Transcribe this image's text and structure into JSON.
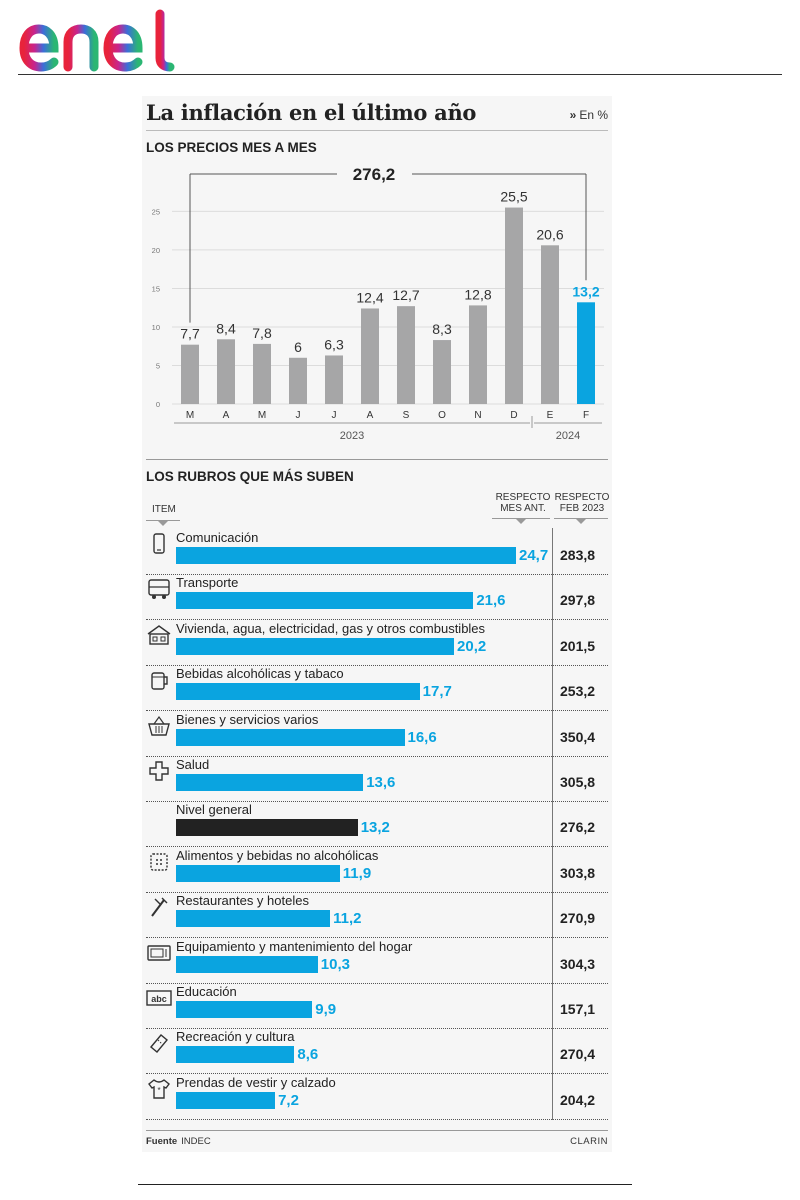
{
  "brand": {
    "name": "enel"
  },
  "infographic": {
    "title": "La inflación en el último año",
    "unit_marker": "»",
    "unit_label": "En %",
    "source_label": "Fuente",
    "source_value": "INDEC",
    "publisher": "CLARIN"
  },
  "chart_data": [
    {
      "type": "bar",
      "title": "LOS PRECIOS MES A MES",
      "categories": [
        "M",
        "A",
        "M",
        "J",
        "J",
        "A",
        "S",
        "O",
        "N",
        "D",
        "E",
        "F"
      ],
      "values": [
        7.7,
        8.4,
        7.8,
        6,
        6.3,
        12.4,
        12.7,
        8.3,
        12.8,
        25.5,
        20.6,
        13.2
      ],
      "value_labels": [
        "7,7",
        "8,4",
        "7,8",
        "6",
        "6,3",
        "12,4",
        "12,7",
        "8,3",
        "12,8",
        "25,5",
        "20,6",
        "13,2"
      ],
      "highlight_index": 11,
      "yticks": [
        0,
        5,
        10,
        15,
        20,
        25
      ],
      "ytick_labels": [
        "0",
        "5",
        "10",
        "15",
        "20",
        "25"
      ],
      "ylim": [
        0,
        27
      ],
      "grid": true,
      "cumulative_label": "276,2",
      "year_groups": [
        {
          "label": "2023",
          "from": 0,
          "to": 9
        },
        {
          "label": "2024",
          "from": 10,
          "to": 11
        }
      ],
      "colors": {
        "bar": "#a6a6a7",
        "highlight": "#0aa4e0",
        "grid": "#dcdcdc"
      }
    },
    {
      "type": "bar",
      "orientation": "horizontal",
      "title": "LOS RUBROS QUE MÁS SUBEN",
      "item_header": "ITEM",
      "column_headers": {
        "mes_ant": [
          "RESPECTO",
          "MES ANT."
        ],
        "feb": [
          "RESPECTO",
          "FEB 2023"
        ]
      },
      "xlim": [
        0,
        24.7
      ],
      "items": [
        {
          "label": "Comunicación",
          "icon": "phone-icon",
          "value": 24.7,
          "value_label": "24,7",
          "feb2023": "283,8"
        },
        {
          "label": "Transporte",
          "icon": "bus-icon",
          "value": 21.6,
          "value_label": "21,6",
          "feb2023": "297,8"
        },
        {
          "label": "Vivienda, agua, electricidad, gas y otros combustibles",
          "icon": "house-icon",
          "value": 20.2,
          "value_label": "20,2",
          "feb2023": "201,5"
        },
        {
          "label": "Bebidas alcohólicas y tabaco",
          "icon": "beer-mug-icon",
          "value": 17.7,
          "value_label": "17,7",
          "feb2023": "253,2"
        },
        {
          "label": "Bienes y servicios varios",
          "icon": "basket-icon",
          "value": 16.6,
          "value_label": "16,6",
          "feb2023": "350,4"
        },
        {
          "label": "Salud",
          "icon": "medical-icon",
          "value": 13.6,
          "value_label": "13,6",
          "feb2023": "305,8"
        },
        {
          "label": "Nivel general",
          "icon": "",
          "value": 13.2,
          "value_label": "13,2",
          "feb2023": "276,2",
          "highlight": true
        },
        {
          "label": "Alimentos y bebidas no alcohólicas",
          "icon": "food-icon",
          "value": 11.9,
          "value_label": "11,9",
          "feb2023": "303,8"
        },
        {
          "label": "Restaurantes y hoteles",
          "icon": "utensils-icon",
          "value": 11.2,
          "value_label": "11,2",
          "feb2023": "270,9"
        },
        {
          "label": "Equipamiento y mantenimiento del hogar",
          "icon": "microwave-icon",
          "value": 10.3,
          "value_label": "10,3",
          "feb2023": "304,3"
        },
        {
          "label": "Educación",
          "icon": "abc-icon",
          "value": 9.9,
          "value_label": "9,9",
          "feb2023": "157,1"
        },
        {
          "label": "Recreación y cultura",
          "icon": "ticket-icon",
          "value": 8.6,
          "value_label": "8,6",
          "feb2023": "270,4"
        },
        {
          "label": "Prendas de vestir y calzado",
          "icon": "tshirt-icon",
          "value": 7.2,
          "value_label": "7,2",
          "feb2023": "204,2"
        }
      ],
      "colors": {
        "bar": "#0aa4e0",
        "highlight": "#222222",
        "value_text": "#0aa4e0"
      }
    }
  ]
}
